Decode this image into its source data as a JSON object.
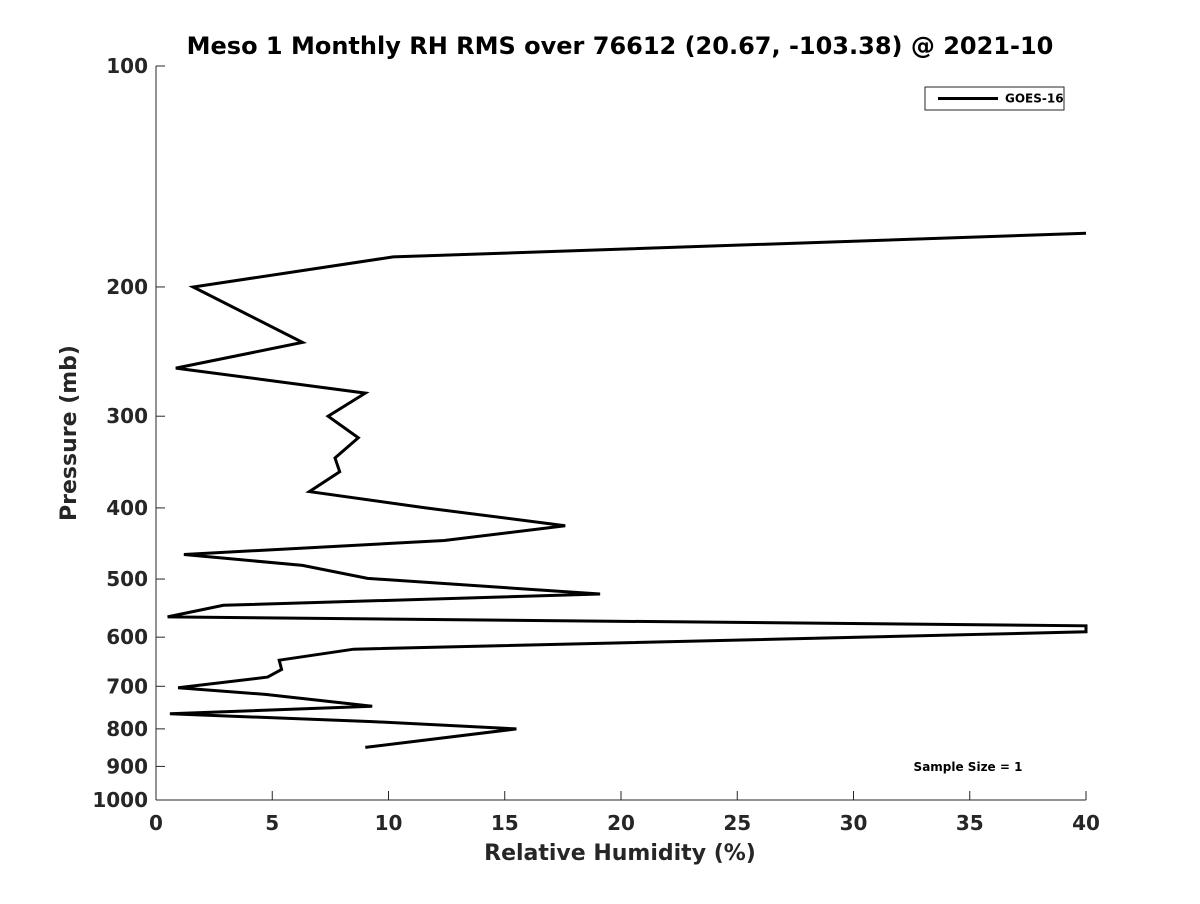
{
  "chart_data": {
    "type": "line",
    "title": "Meso 1 Monthly RH RMS over 76612 (20.67, -103.38) @ 2021-10",
    "xlabel": "Relative Humidity (%)",
    "ylabel": "Pressure (mb)",
    "xlim": [
      0,
      40
    ],
    "ylim": [
      100,
      1000
    ],
    "yscale": "log",
    "y_reversed": true,
    "xticks": [
      "0",
      "5",
      "10",
      "15",
      "20",
      "25",
      "30",
      "35",
      "40"
    ],
    "yticks": [
      "100",
      "200",
      "300",
      "400",
      "500",
      "600",
      "700",
      "800",
      "900",
      "1000"
    ],
    "grid": false,
    "legend_position": "top-right",
    "annotation": "Sample Size = 1",
    "series": [
      {
        "name": "GOES-16",
        "color": "#000000",
        "points": [
          {
            "x": 40,
            "y": 169
          },
          {
            "x": 10.2,
            "y": 182
          },
          {
            "x": 1.6,
            "y": 200
          },
          {
            "x": 6.3,
            "y": 238
          },
          {
            "x": 0.85,
            "y": 258
          },
          {
            "x": 9.0,
            "y": 279
          },
          {
            "x": 7.4,
            "y": 300
          },
          {
            "x": 8.7,
            "y": 321
          },
          {
            "x": 7.7,
            "y": 342
          },
          {
            "x": 7.9,
            "y": 357
          },
          {
            "x": 6.6,
            "y": 380
          },
          {
            "x": 11.6,
            "y": 400
          },
          {
            "x": 17.6,
            "y": 423
          },
          {
            "x": 12.4,
            "y": 443
          },
          {
            "x": 1.2,
            "y": 463
          },
          {
            "x": 6.3,
            "y": 479
          },
          {
            "x": 9.1,
            "y": 499
          },
          {
            "x": 19.1,
            "y": 524
          },
          {
            "x": 2.9,
            "y": 543
          },
          {
            "x": 0.5,
            "y": 563
          },
          {
            "x": 40,
            "y": 579
          },
          {
            "x": 40,
            "y": 590
          },
          {
            "x": 8.5,
            "y": 623
          },
          {
            "x": 5.3,
            "y": 645
          },
          {
            "x": 5.4,
            "y": 664
          },
          {
            "x": 4.8,
            "y": 680
          },
          {
            "x": 0.95,
            "y": 703
          },
          {
            "x": 4.7,
            "y": 718
          },
          {
            "x": 9.3,
            "y": 745
          },
          {
            "x": 0.6,
            "y": 763
          },
          {
            "x": 9.3,
            "y": 782
          },
          {
            "x": 15.5,
            "y": 800
          },
          {
            "x": 9.0,
            "y": 848
          }
        ]
      }
    ]
  }
}
